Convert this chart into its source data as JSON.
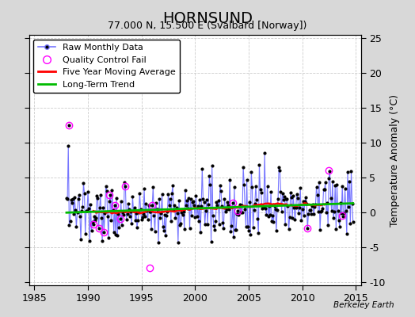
{
  "title": "HORNSUND",
  "subtitle": "77.000 N, 15.500 E (Svalbard [Norway])",
  "watermark": "Berkeley Earth",
  "xlim": [
    1984.5,
    2015.5
  ],
  "ylim": [
    -10.5,
    25.5
  ],
  "yticks_left": [
    -10,
    -5,
    0,
    5,
    10,
    15,
    20,
    25
  ],
  "yticks_right": [
    -10,
    -5,
    0,
    5,
    10,
    15,
    20,
    25
  ],
  "xticks": [
    1985,
    1990,
    1995,
    2000,
    2005,
    2010,
    2015
  ],
  "ylabel_right": "Temperature Anomaly (°C)",
  "fig_bg_color": "#d8d8d8",
  "plot_bg_color": "#ffffff",
  "raw_line_color": "#7777ff",
  "raw_marker_color": "#000000",
  "qc_fail_color": "#ff00ff",
  "moving_avg_color": "#ff0000",
  "trend_color": "#00bb00",
  "grid_color": "#cccccc",
  "title_fontsize": 13,
  "subtitle_fontsize": 9,
  "tick_fontsize": 9,
  "ylabel_fontsize": 9,
  "legend_fontsize": 8
}
